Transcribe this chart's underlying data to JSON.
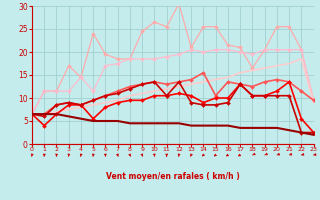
{
  "bg_color": "#c5eced",
  "grid_color": "#a0d0d0",
  "xlabel": "Vent moyen/en rafales ( km/h )",
  "xlim": [
    0,
    23
  ],
  "ylim": [
    0,
    30
  ],
  "yticks": [
    0,
    5,
    10,
    15,
    20,
    25,
    30
  ],
  "xticks": [
    0,
    1,
    2,
    3,
    4,
    5,
    6,
    7,
    8,
    9,
    10,
    11,
    12,
    13,
    14,
    15,
    16,
    17,
    18,
    19,
    20,
    21,
    22,
    23
  ],
  "x": [
    0,
    1,
    2,
    3,
    4,
    5,
    6,
    7,
    8,
    9,
    10,
    11,
    12,
    13,
    14,
    15,
    16,
    17,
    18,
    19,
    20,
    21,
    22,
    23
  ],
  "lines": [
    {
      "label": "light_pink_dotted_spiky",
      "y": [
        6.5,
        11.5,
        11.5,
        17.0,
        14.5,
        24.0,
        19.5,
        18.5,
        18.5,
        24.5,
        26.5,
        25.5,
        30.5,
        21.0,
        25.5,
        25.5,
        21.5,
        21.0,
        16.5,
        20.5,
        25.5,
        25.5,
        20.5,
        9.5
      ],
      "color": "#ffaaaa",
      "lw": 0.9,
      "marker": "D",
      "ms": 2.0,
      "zorder": 2,
      "ls": "-"
    },
    {
      "label": "light_pink_smooth",
      "y": [
        6.5,
        11.5,
        11.5,
        11.5,
        14.5,
        11.5,
        17.0,
        17.5,
        18.5,
        18.5,
        18.5,
        19.0,
        19.5,
        20.5,
        20.0,
        20.5,
        20.5,
        20.0,
        19.5,
        20.5,
        20.5,
        20.5,
        20.5,
        9.5
      ],
      "color": "#ffbbcc",
      "lw": 0.9,
      "marker": "D",
      "ms": 2.0,
      "zorder": 2,
      "ls": "-"
    },
    {
      "label": "diagonal_trend",
      "y": [
        6.0,
        6.5,
        7.0,
        7.5,
        8.0,
        8.5,
        9.0,
        9.5,
        10.5,
        11.0,
        11.5,
        12.0,
        12.5,
        13.0,
        13.5,
        14.0,
        14.5,
        15.5,
        16.0,
        16.5,
        17.0,
        17.5,
        18.5,
        9.0
      ],
      "color": "#ffcccc",
      "lw": 1.2,
      "marker": null,
      "ms": 0,
      "zorder": 2,
      "ls": "-"
    },
    {
      "label": "medium_red_wavy",
      "y": [
        6.5,
        6.5,
        8.5,
        9.0,
        8.5,
        9.5,
        10.5,
        11.5,
        12.5,
        13.0,
        13.5,
        13.0,
        13.5,
        14.0,
        15.5,
        10.5,
        13.5,
        13.0,
        12.5,
        13.5,
        14.0,
        13.5,
        11.5,
        9.5
      ],
      "color": "#ff5555",
      "lw": 1.2,
      "marker": "D",
      "ms": 2.0,
      "zorder": 3,
      "ls": "-"
    },
    {
      "label": "red_main_wavy",
      "y": [
        6.5,
        4.0,
        6.5,
        8.5,
        8.5,
        5.5,
        8.0,
        9.0,
        9.5,
        9.5,
        10.5,
        10.5,
        11.0,
        10.5,
        9.0,
        10.0,
        10.0,
        13.0,
        10.5,
        10.5,
        11.5,
        13.5,
        5.5,
        2.5
      ],
      "color": "#ff0000",
      "lw": 1.2,
      "marker": "D",
      "ms": 2.0,
      "zorder": 4,
      "ls": "-"
    },
    {
      "label": "dark_red_declining",
      "y": [
        6.5,
        6.5,
        6.5,
        6.0,
        5.5,
        5.0,
        5.0,
        5.0,
        4.5,
        4.5,
        4.5,
        4.5,
        4.5,
        4.0,
        4.0,
        4.0,
        4.0,
        3.5,
        3.5,
        3.5,
        3.5,
        3.0,
        2.5,
        2.0
      ],
      "color": "#990000",
      "lw": 1.5,
      "marker": null,
      "ms": 0,
      "zorder": 5,
      "ls": "-"
    },
    {
      "label": "darkred_medium",
      "y": [
        6.5,
        6.0,
        8.5,
        9.0,
        8.5,
        9.5,
        10.5,
        11.0,
        12.0,
        13.0,
        13.5,
        10.5,
        13.5,
        9.0,
        8.5,
        8.5,
        9.0,
        13.0,
        10.5,
        10.5,
        10.5,
        10.5,
        2.5,
        2.5
      ],
      "color": "#cc0000",
      "lw": 1.2,
      "marker": "D",
      "ms": 2.0,
      "zorder": 4,
      "ls": "-"
    }
  ],
  "arrow_angles_deg": [
    185,
    185,
    185,
    185,
    185,
    185,
    175,
    170,
    165,
    170,
    175,
    180,
    185,
    195,
    205,
    215,
    220,
    225,
    230,
    230,
    235,
    235,
    240,
    245
  ],
  "arrow_color": "#cc0000",
  "axis_color": "#cc0000",
  "tick_color": "#cc0000"
}
